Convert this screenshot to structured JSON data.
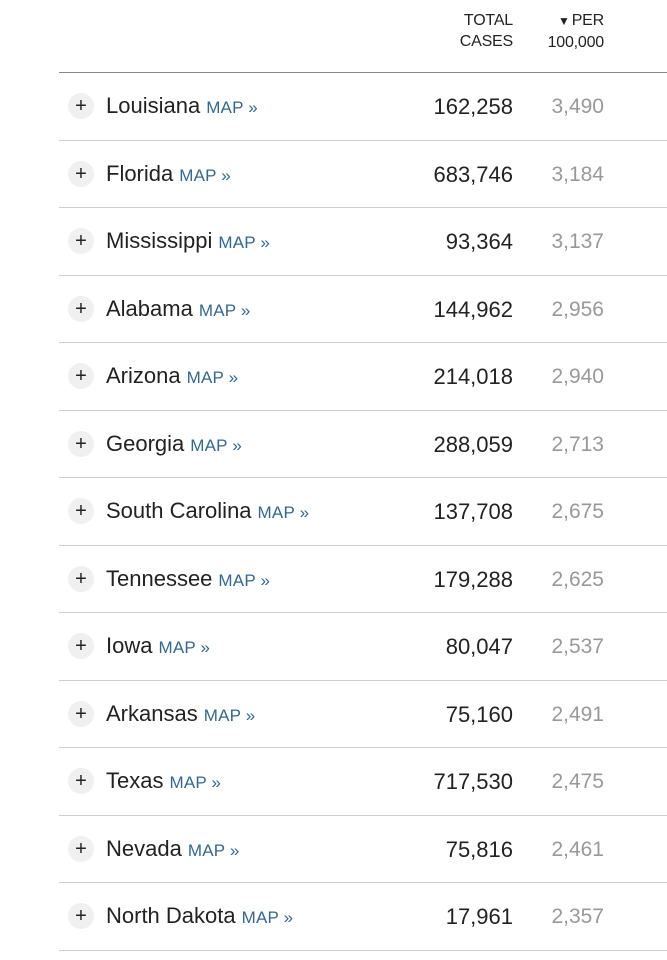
{
  "header": {
    "total_line1": "TOTAL",
    "total_line2": "CASES",
    "sort_arrow": "▼",
    "per_line1": "PER",
    "per_line2": "100,000"
  },
  "rows": [
    {
      "state": "Louisiana",
      "map_label": "MAP »",
      "total": "162,258",
      "per": "3,490"
    },
    {
      "state": "Florida",
      "map_label": "MAP »",
      "total": "683,746",
      "per": "3,184"
    },
    {
      "state": "Mississippi",
      "map_label": "MAP »",
      "total": "93,364",
      "per": "3,137"
    },
    {
      "state": "Alabama",
      "map_label": "MAP »",
      "total": "144,962",
      "per": "2,956"
    },
    {
      "state": "Arizona",
      "map_label": "MAP »",
      "total": "214,018",
      "per": "2,940"
    },
    {
      "state": "Georgia",
      "map_label": "MAP »",
      "total": "288,059",
      "per": "2,713"
    },
    {
      "state": "South Carolina",
      "map_label": "MAP »",
      "total": "137,708",
      "per": "2,675"
    },
    {
      "state": "Tennessee",
      "map_label": "MAP »",
      "total": "179,288",
      "per": "2,625"
    },
    {
      "state": "Iowa",
      "map_label": "MAP »",
      "total": "80,047",
      "per": "2,537"
    },
    {
      "state": "Arkansas",
      "map_label": "MAP »",
      "total": "75,160",
      "per": "2,491"
    },
    {
      "state": "Texas",
      "map_label": "MAP »",
      "total": "717,530",
      "per": "2,475"
    },
    {
      "state": "Nevada",
      "map_label": "MAP »",
      "total": "75,816",
      "per": "2,461"
    },
    {
      "state": "North Dakota",
      "map_label": "MAP »",
      "total": "17,961",
      "per": "2,357"
    }
  ],
  "icons": {
    "expand": "plus-icon",
    "sort": "sort-down-arrow-icon"
  },
  "colors": {
    "map_link": "#326891",
    "per_value": "#999999",
    "text": "#222222"
  }
}
